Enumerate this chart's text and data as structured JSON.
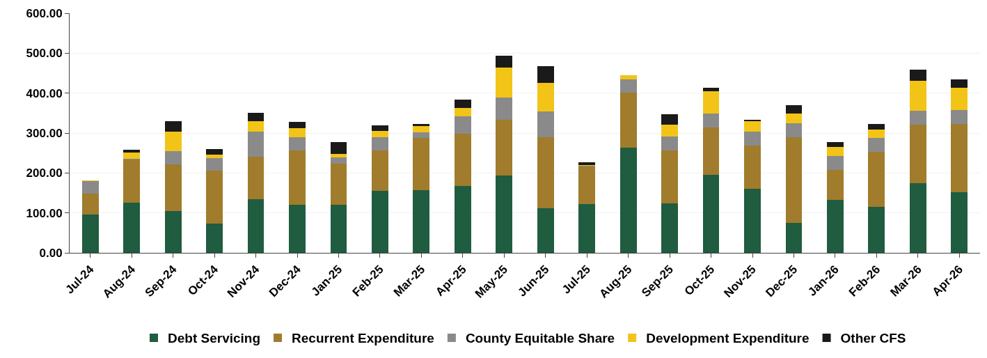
{
  "chart_data": {
    "type": "bar",
    "stacked": true,
    "categories": [
      "Jul-24",
      "Aug-24",
      "Sep-24",
      "Oct-24",
      "Nov-24",
      "Dec-24",
      "Jan-25",
      "Feb-25",
      "Mar-25",
      "Apr-25",
      "May-25",
      "Jun-25",
      "Jul-25",
      "Aug-25",
      "Sep-25",
      "Oct-25",
      "Nov-25",
      "Dec-25",
      "Jan-26",
      "Feb-26",
      "Mar-26",
      "Apr-26"
    ],
    "series": [
      {
        "name": "Debt Servicing",
        "color": "#1f5c40",
        "values": [
          96,
          125,
          105,
          73,
          135,
          120,
          120,
          156,
          157,
          168,
          194,
          112,
          122,
          263,
          123,
          196,
          160,
          75,
          133,
          115,
          174,
          152
        ]
      },
      {
        "name": "Recurrent Expenditure",
        "color": "#a07c2c",
        "values": [
          53,
          109,
          117,
          132,
          105,
          136,
          103,
          100,
          131,
          130,
          140,
          178,
          95,
          138,
          134,
          118,
          108,
          214,
          75,
          138,
          147,
          171
        ]
      },
      {
        "name": "County Equitable Share",
        "color": "#8a8a8a",
        "values": [
          31,
          1,
          32,
          33,
          63,
          33,
          16,
          33,
          14,
          44,
          55,
          64,
          1,
          33,
          35,
          35,
          35,
          35,
          34,
          35,
          35,
          34
        ]
      },
      {
        "name": "Development Expenditure",
        "color": "#f2c418",
        "values": [
          2,
          16,
          50,
          8,
          26,
          24,
          8,
          17,
          15,
          20,
          75,
          71,
          1,
          10,
          29,
          56,
          26,
          24,
          23,
          20,
          74,
          56
        ]
      },
      {
        "name": "Other CFS",
        "color": "#1a1a1a",
        "values": [
          0,
          7,
          26,
          14,
          21,
          15,
          31,
          13,
          6,
          21,
          29,
          42,
          7,
          0,
          26,
          9,
          4,
          21,
          12,
          14,
          28,
          21
        ]
      }
    ],
    "ylim": [
      0,
      600
    ],
    "yticks": [
      {
        "value": 0,
        "label": "0.00"
      },
      {
        "value": 100,
        "label": "100.00"
      },
      {
        "value": 200,
        "label": "200.00"
      },
      {
        "value": 300,
        "label": "300.00"
      },
      {
        "value": 400,
        "label": "400.00"
      },
      {
        "value": 500,
        "label": "500.00"
      },
      {
        "value": 600,
        "label": "600.00"
      }
    ],
    "grid": "y",
    "legend": "bottom"
  }
}
